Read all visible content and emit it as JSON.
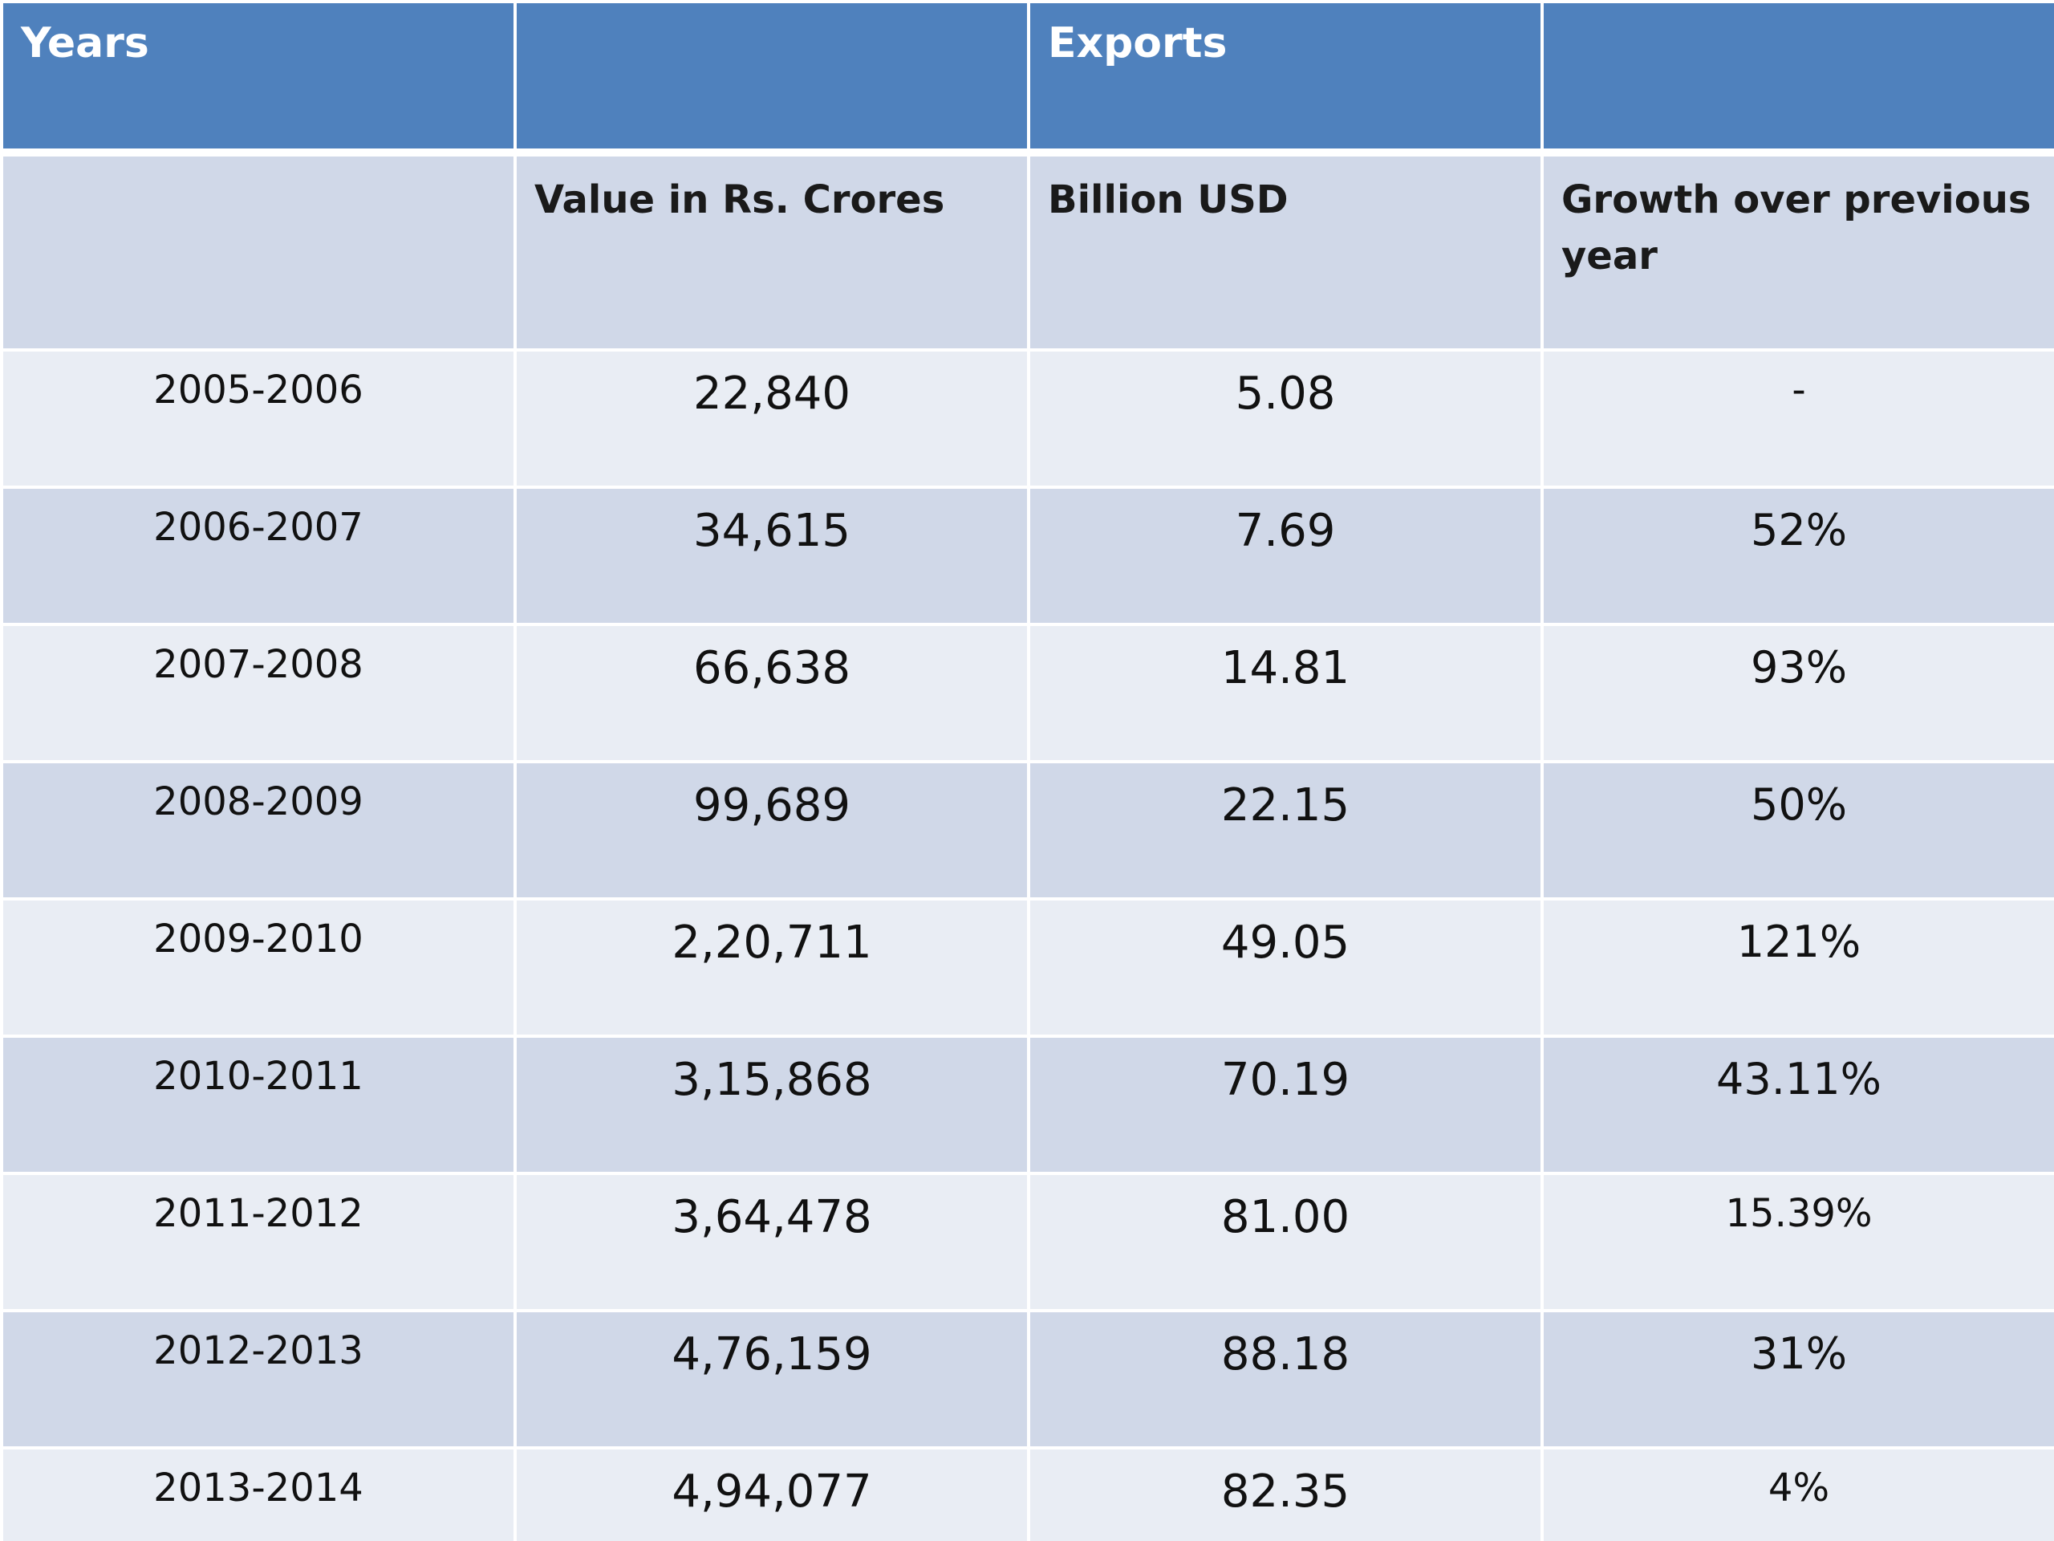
{
  "header": {
    "years_label": "Years",
    "exports_label": "Exports"
  },
  "subheader": {
    "col1": "",
    "col2": "Value in Rs. Crores",
    "col3": "Billion USD",
    "col4": "Growth over previous year"
  },
  "rows": [
    {
      "year": "2005-2006",
      "value_crores": "22,840",
      "billion_usd": "5.08",
      "growth": "-"
    },
    {
      "year": "2006-2007",
      "value_crores": "34,615",
      "billion_usd": "7.69",
      "growth": "52%"
    },
    {
      "year": "2007-2008",
      "value_crores": "66,638",
      "billion_usd": "14.81",
      "growth": "93%"
    },
    {
      "year": "2008-2009",
      "value_crores": "99,689",
      "billion_usd": "22.15",
      "growth": "50%"
    },
    {
      "year": "2009-2010",
      "value_crores": "2,20,711",
      "billion_usd": "49.05",
      "growth": "121%"
    },
    {
      "year": "2010-2011",
      "value_crores": "3,15,868",
      "billion_usd": "70.19",
      "growth": "43.11%"
    },
    {
      "year": "2011-2012",
      "value_crores": "3,64,478",
      "billion_usd": "81.00",
      "growth": "15.39%"
    },
    {
      "year": "2012-2013",
      "value_crores": "4,76,159",
      "billion_usd": "88.18",
      "growth": "31%"
    },
    {
      "year": "2013-2014",
      "value_crores": "4,94,077",
      "billion_usd": "82.35",
      "growth": "4%"
    }
  ],
  "colors": {
    "header_bg": "#4f81bd",
    "band_dark": "#d0d8e8",
    "band_light": "#e9edf4"
  }
}
